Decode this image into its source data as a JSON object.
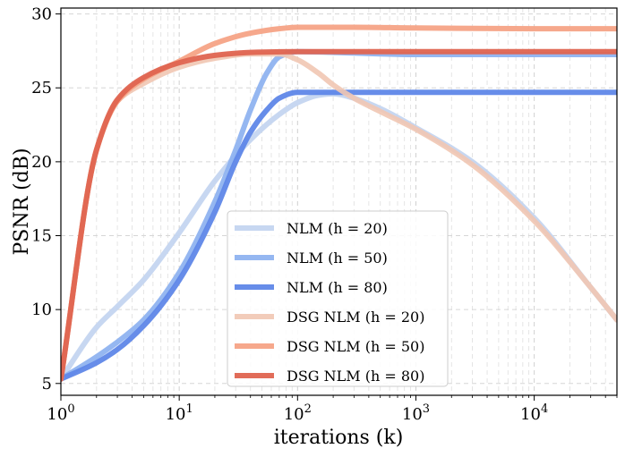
{
  "chart_data": {
    "type": "line",
    "title": "",
    "xlabel": "iterations (k)",
    "ylabel": "PSNR (dB)",
    "xscale": "log",
    "xlim": [
      1,
      50000
    ],
    "ylim": [
      4.2,
      30.4
    ],
    "grid": true,
    "legend_position": "lower-center",
    "x_ticks": [
      {
        "value": 1,
        "base": "10",
        "exp": "0"
      },
      {
        "value": 10,
        "base": "10",
        "exp": "1"
      },
      {
        "value": 100,
        "base": "10",
        "exp": "2"
      },
      {
        "value": 1000,
        "base": "10",
        "exp": "3"
      },
      {
        "value": 10000,
        "base": "10",
        "exp": "4"
      }
    ],
    "y_ticks": [
      5,
      10,
      15,
      20,
      25,
      30
    ],
    "series": [
      {
        "name": "NLM (h = 20)",
        "color": "#c4d5f0",
        "opacity": 0.95,
        "points": [
          [
            1,
            5.3
          ],
          [
            2,
            8.8
          ],
          [
            3,
            10.2
          ],
          [
            5,
            12.0
          ],
          [
            10,
            15.2
          ],
          [
            20,
            18.7
          ],
          [
            40,
            21.5
          ],
          [
            70,
            23.2
          ],
          [
            100,
            24.0
          ],
          [
            150,
            24.5
          ],
          [
            200,
            24.6
          ],
          [
            300,
            24.3
          ],
          [
            500,
            23.6
          ],
          [
            1000,
            22.3
          ],
          [
            3000,
            20.0
          ],
          [
            10000,
            16.2
          ],
          [
            30000,
            11.5
          ],
          [
            50000,
            9.3
          ]
        ]
      },
      {
        "name": "NLM (h = 50)",
        "color": "#8fb3f0",
        "opacity": 0.95,
        "points": [
          [
            1,
            5.3
          ],
          [
            2,
            6.8
          ],
          [
            3,
            7.8
          ],
          [
            5,
            9.3
          ],
          [
            10,
            12.5
          ],
          [
            20,
            17.3
          ],
          [
            30,
            20.8
          ],
          [
            40,
            23.5
          ],
          [
            55,
            26.0
          ],
          [
            70,
            27.1
          ],
          [
            100,
            27.45
          ],
          [
            200,
            27.4
          ],
          [
            500,
            27.3
          ],
          [
            1000,
            27.25
          ],
          [
            10000,
            27.25
          ],
          [
            50000,
            27.25
          ]
        ]
      },
      {
        "name": "NLM (h = 80)",
        "color": "#5f87e8",
        "opacity": 0.95,
        "points": [
          [
            1,
            5.3
          ],
          [
            2,
            6.4
          ],
          [
            3,
            7.3
          ],
          [
            5,
            8.9
          ],
          [
            10,
            12.0
          ],
          [
            20,
            16.6
          ],
          [
            30,
            20.0
          ],
          [
            40,
            22.0
          ],
          [
            55,
            23.5
          ],
          [
            70,
            24.3
          ],
          [
            100,
            24.7
          ],
          [
            200,
            24.7
          ],
          [
            1000,
            24.7
          ],
          [
            50000,
            24.7
          ]
        ]
      },
      {
        "name": "DSG NLM (h = 20)",
        "color": "#f1c6b2",
        "opacity": 0.9,
        "points": [
          [
            1,
            5.3
          ],
          [
            2,
            20.8
          ],
          [
            3,
            24.1
          ],
          [
            5,
            25.3
          ],
          [
            10,
            26.4
          ],
          [
            20,
            27.0
          ],
          [
            40,
            27.3
          ],
          [
            70,
            27.3
          ],
          [
            100,
            26.9
          ],
          [
            150,
            26.0
          ],
          [
            200,
            25.2
          ],
          [
            300,
            24.3
          ],
          [
            500,
            23.4
          ],
          [
            1000,
            22.2
          ],
          [
            3000,
            19.8
          ],
          [
            10000,
            16.0
          ],
          [
            30000,
            11.5
          ],
          [
            50000,
            9.3
          ]
        ]
      },
      {
        "name": "DSG NLM (h = 50)",
        "color": "#f5a386",
        "opacity": 0.95,
        "points": [
          [
            1,
            5.3
          ],
          [
            2,
            20.8
          ],
          [
            3,
            24.1
          ],
          [
            5,
            25.6
          ],
          [
            10,
            26.8
          ],
          [
            20,
            28.0
          ],
          [
            40,
            28.7
          ],
          [
            70,
            29.0
          ],
          [
            100,
            29.1
          ],
          [
            300,
            29.1
          ],
          [
            1000,
            29.05
          ],
          [
            10000,
            29.0
          ],
          [
            50000,
            29.0
          ]
        ]
      },
      {
        "name": "DSG NLM (h = 80)",
        "color": "#df6450",
        "opacity": 0.95,
        "points": [
          [
            1,
            5.3
          ],
          [
            2,
            20.8
          ],
          [
            3,
            24.2
          ],
          [
            5,
            25.7
          ],
          [
            10,
            26.7
          ],
          [
            20,
            27.2
          ],
          [
            40,
            27.4
          ],
          [
            100,
            27.45
          ],
          [
            1000,
            27.45
          ],
          [
            50000,
            27.45
          ]
        ]
      }
    ]
  }
}
